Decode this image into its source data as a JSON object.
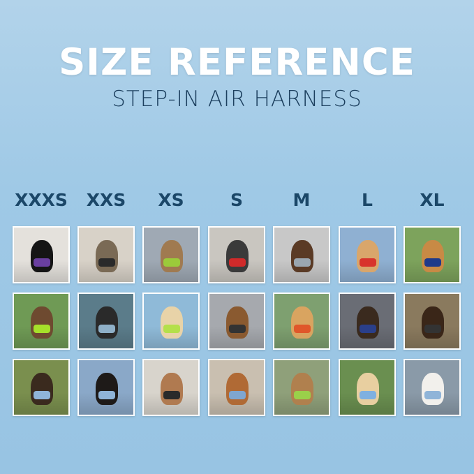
{
  "header": {
    "title": "SIZE REFERENCE",
    "subtitle": "STEP-IN AIR HARNESS"
  },
  "sizes": [
    "XXXS",
    "XXS",
    "XS",
    "S",
    "M",
    "L",
    "XL"
  ],
  "photos": [
    [
      {
        "bg": "#e4e1dc",
        "dog": "#151515",
        "harness": "#6a3fa0"
      },
      {
        "bg": "#d8d2c8",
        "dog": "#7a6a55",
        "harness": "#2a2a2a"
      },
      {
        "bg": "#9fa9b4",
        "dog": "#a07a50",
        "harness": "#9bcb3a"
      },
      {
        "bg": "#c9c6c0",
        "dog": "#3a3a3a",
        "harness": "#d02a2a"
      },
      {
        "bg": "#c8c8c8",
        "dog": "#5a3a25",
        "harness": "#9aa6b0"
      },
      {
        "bg": "#8fb0d2",
        "dog": "#d9a66b",
        "harness": "#d8342c"
      },
      {
        "bg": "#7da35c",
        "dog": "#c88a45",
        "harness": "#1e3a8a"
      }
    ],
    [
      {
        "bg": "#6f9a55",
        "dog": "#6e4a30",
        "harness": "#a6e02a"
      },
      {
        "bg": "#5b7c8a",
        "dog": "#2a2a2a",
        "harness": "#8fb0c8"
      },
      {
        "bg": "#8fbad8",
        "dog": "#e8d3a8",
        "harness": "#b4e04a"
      },
      {
        "bg": "#a6a9ae",
        "dog": "#8a5a30",
        "harness": "#333333"
      },
      {
        "bg": "#7ea070",
        "dog": "#d9a460",
        "harness": "#e0572a"
      },
      {
        "bg": "#6a6d75",
        "dog": "#3a2a1e",
        "harness": "#2a3f8a"
      },
      {
        "bg": "#8a7a5e",
        "dog": "#3a2618",
        "harness": "#333333"
      }
    ],
    [
      {
        "bg": "#7a8f4e",
        "dog": "#3a2a1e",
        "harness": "#8fb4d8"
      },
      {
        "bg": "#8aa8c8",
        "dog": "#1e1a18",
        "harness": "#8fb4d8"
      },
      {
        "bg": "#d8d4cc",
        "dog": "#b07a50",
        "harness": "#2a2a2a"
      },
      {
        "bg": "#c9bfb0",
        "dog": "#b06a35",
        "harness": "#7fa6d0"
      },
      {
        "bg": "#8fa07a",
        "dog": "#b0804e",
        "harness": "#9ad04a"
      },
      {
        "bg": "#6a8f50",
        "dog": "#e8cfa0",
        "harness": "#7fb0e0"
      },
      {
        "bg": "#8a9aa8",
        "dog": "#f2f0ec",
        "harness": "#8fb4d8"
      }
    ]
  ]
}
